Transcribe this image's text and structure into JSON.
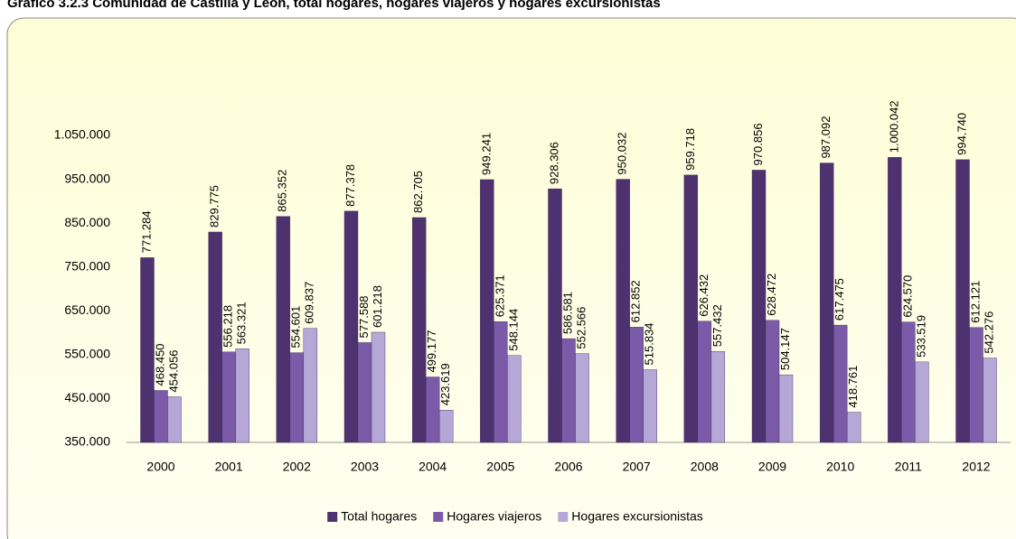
{
  "chart_data": {
    "type": "bar",
    "title": "Gráfico 3.2.3  Comunidad de Castilla y León, total hogares, hogares viajeros y hogares excursionistas",
    "categories": [
      "2000",
      "2001",
      "2002",
      "2003",
      "2004",
      "2005",
      "2006",
      "2007",
      "2008",
      "2009",
      "2010",
      "2011",
      "2012"
    ],
    "series": [
      {
        "name": "Total hogares",
        "color": "#4e3270",
        "values": [
          771284,
          829775,
          865352,
          877378,
          862705,
          949241,
          928306,
          950032,
          959718,
          970856,
          987092,
          1000042,
          994740
        ],
        "value_labels": [
          "771.284",
          "829.775",
          "865.352",
          "877.378",
          "862.705",
          "949.241",
          "928.306",
          "950.032",
          "959.718",
          "970.856",
          "987.092",
          "1.000.042",
          "994.740"
        ]
      },
      {
        "name": "Hogares viajeros",
        "color": "#7b5ba8",
        "values": [
          468450,
          556218,
          554601,
          577588,
          499177,
          625371,
          586581,
          612852,
          626432,
          628472,
          617475,
          624570,
          612121
        ],
        "value_labels": [
          "468.450",
          "556.218",
          "554.601",
          "577.588",
          "499.177",
          "625.371",
          "586.581",
          "612.852",
          "626.432",
          "628.472",
          "617.475",
          "624.570",
          "612.121"
        ]
      },
      {
        "name": "Hogares excursionistas",
        "color": "#b6a8d6",
        "values": [
          454056,
          563321,
          609837,
          601218,
          423619,
          548144,
          552566,
          515834,
          557432,
          504147,
          418761,
          533519,
          542276
        ],
        "value_labels": [
          "454.056",
          "563.321",
          "609.837",
          "601.218",
          "423.619",
          "548.144",
          "552.566",
          "515.834",
          "557.432",
          "504.147",
          "418.761",
          "533.519",
          "542.276"
        ]
      }
    ],
    "ylim": [
      350000,
      1050000
    ],
    "yticks": [
      {
        "value": 350000,
        "label": "350.000"
      },
      {
        "value": 450000,
        "label": "450.000"
      },
      {
        "value": 550000,
        "label": "550.000"
      },
      {
        "value": 650000,
        "label": "650.000"
      },
      {
        "value": 750000,
        "label": "750.000"
      },
      {
        "value": 850000,
        "label": "850.000"
      },
      {
        "value": 950000,
        "label": "950.000"
      },
      {
        "value": 1050000,
        "label": "1.050.000"
      }
    ],
    "grid": false,
    "legend": "bottom"
  }
}
